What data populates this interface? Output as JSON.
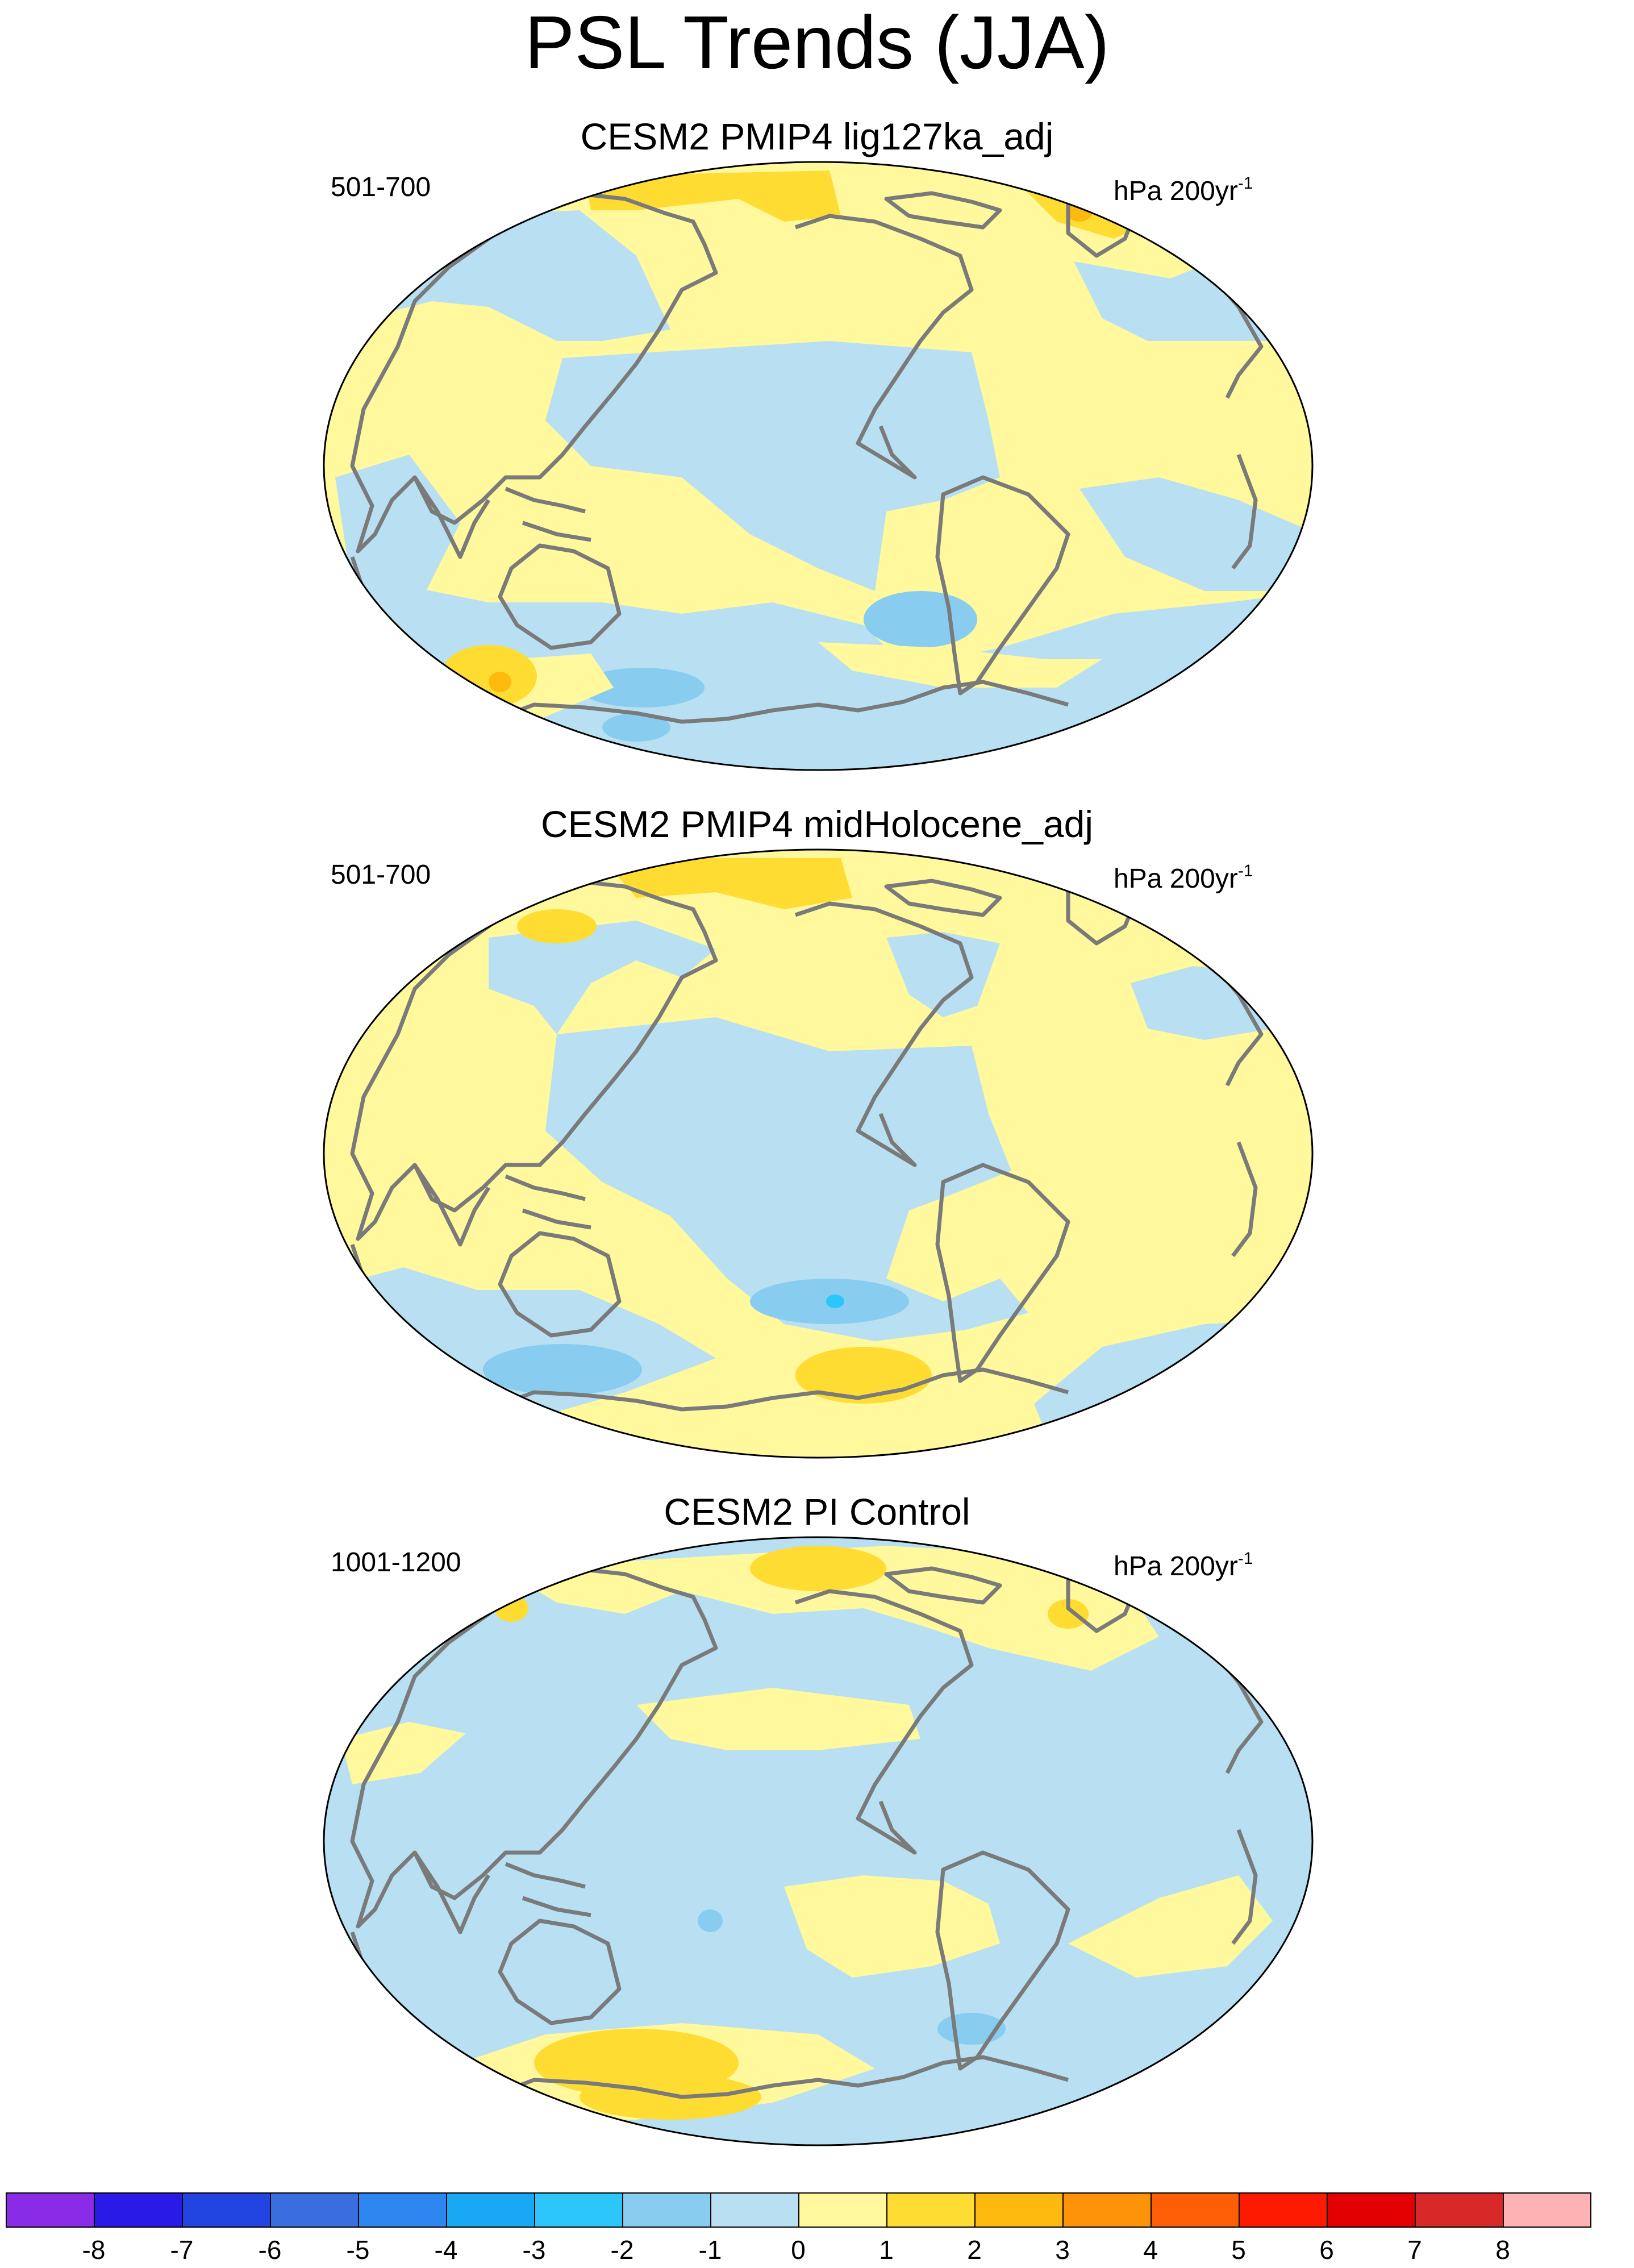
{
  "title": "PSL Trends (JJA)",
  "panels": [
    {
      "title": "CESM2 PMIP4 lig127ka_adj",
      "period": "501-700",
      "units": "hPa 200yr",
      "units_sup": "-1"
    },
    {
      "title": "CESM2 PMIP4 midHolocene_adj",
      "period": "501-700",
      "units": "hPa 200yr",
      "units_sup": "-1"
    },
    {
      "title": "CESM2 PI Control",
      "period": "1001-1200",
      "units": "hPa 200yr",
      "units_sup": "-1"
    }
  ],
  "colorbar": {
    "labels": [
      "-8",
      "-7",
      "-6",
      "-5",
      "-4",
      "-3",
      "-2",
      "-1",
      "0",
      "1",
      "2",
      "3",
      "4",
      "5",
      "6",
      "7",
      "8"
    ],
    "colors": [
      "#8a2be8",
      "#2a1ae8",
      "#2244e0",
      "#3a6ee0",
      "#2e86f0",
      "#18a8f4",
      "#2cc6fa",
      "#88cdef",
      "#b8e0f2",
      "#fff89c",
      "#fedc32",
      "#fdb90e",
      "#fe9208",
      "#fe5f06",
      "#fe1a00",
      "#e20000",
      "#d82828",
      "#fdb3b3"
    ]
  },
  "map_colors": {
    "positive_weak": "#fff89c",
    "positive_mid": "#fedc32",
    "positive_strong": "#fdb90e",
    "negative_weak": "#b8e0f2",
    "negative_mid": "#88cdef",
    "negative_strong": "#2cc6fa",
    "coastline": "#7a7a7a"
  }
}
